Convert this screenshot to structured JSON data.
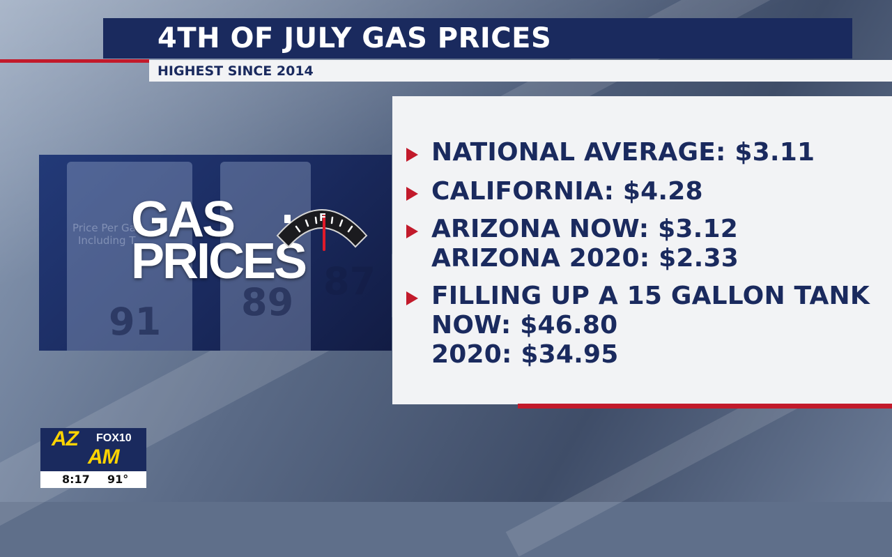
{
  "header": {
    "title": "4TH OF JULY GAS PRICES",
    "subtitle": "HIGHEST SINCE 2014"
  },
  "promo": {
    "line1": "GAS",
    "line2": "PRICES",
    "gauge_full_label": "F",
    "pump_numbers": [
      "91",
      "89",
      "87"
    ],
    "pump_sign_lines": [
      "Price Per Ga",
      "Including T"
    ]
  },
  "facts": [
    {
      "lines": [
        "NATIONAL AVERAGE: $3.11"
      ]
    },
    {
      "lines": [
        "CALIFORNIA: $4.28"
      ]
    },
    {
      "lines": [
        "ARIZONA NOW: $3.12",
        "ARIZONA 2020: $2.33"
      ]
    },
    {
      "lines": [
        "FILLING UP A 15 GALLON TANK",
        "NOW: $46.80",
        "2020: $34.95"
      ]
    }
  ],
  "station_bug": {
    "brand_top": "AZ",
    "brand_bottom": "AM",
    "network": "FOX10",
    "time": "8:17",
    "temperature": "91°"
  },
  "colors": {
    "navy": "#1a2a5e",
    "red": "#c21a2b",
    "panel": "#f2f3f5",
    "yellow": "#ffd400"
  }
}
